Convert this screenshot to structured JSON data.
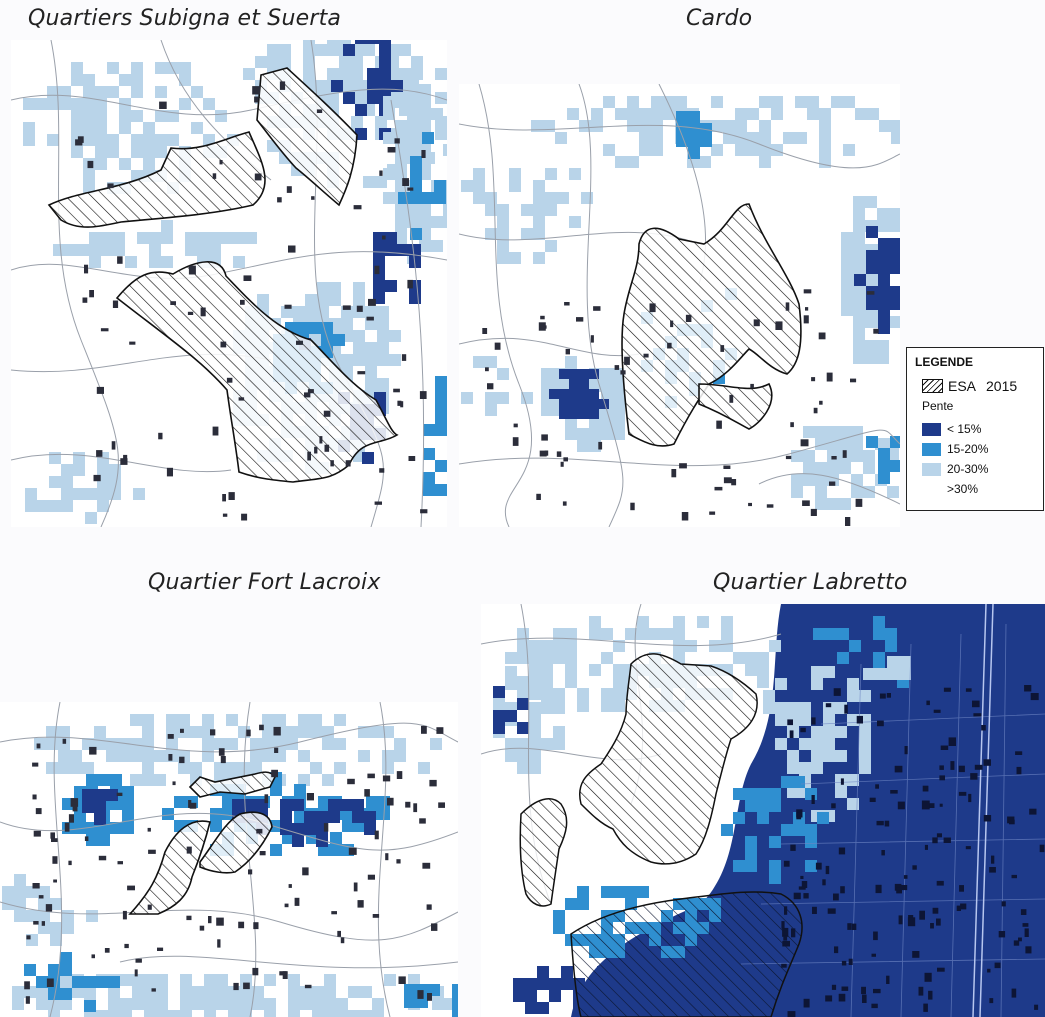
{
  "titles": {
    "p1": "Quartiers Subigna et Suerta",
    "p2": "Cardo",
    "p3": "Quartier Fort Lacroix",
    "p4": "Quartier Labretto"
  },
  "legend": {
    "title": "LEGENDE",
    "esa_label": "ESA",
    "esa_year": "2015",
    "slope_label": "Pente",
    "classes": [
      {
        "label": "< 15%",
        "color": "#1e3a8a"
      },
      {
        "label": "15-20%",
        "color": "#2f8fd0"
      },
      {
        "label": "20-30%",
        "color": "#b9d4e9"
      },
      {
        "label": ">30%",
        "color": "#ffffff"
      }
    ]
  },
  "colors": {
    "dark": "#1e3a8a",
    "mid": "#2f8fd0",
    "light": "#b9d4e9",
    "building": "#2b2d3a",
    "road": "#9aa0aa"
  }
}
